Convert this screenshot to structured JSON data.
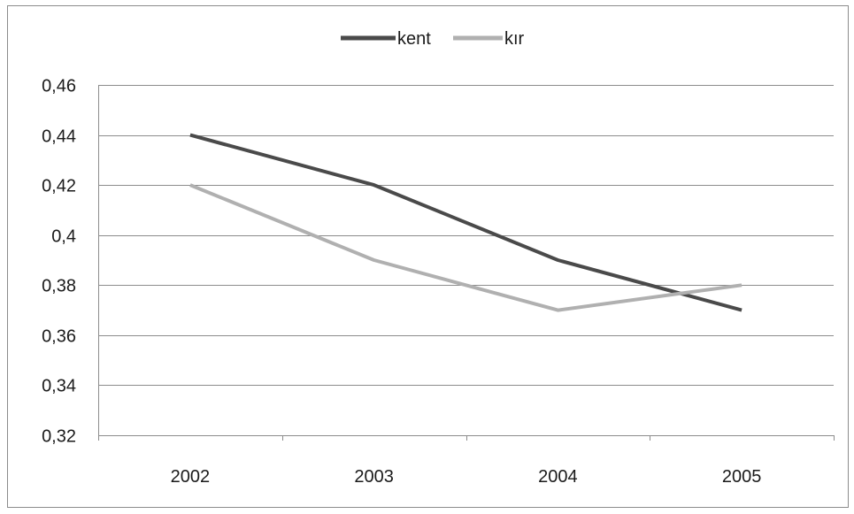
{
  "chart_data": {
    "type": "line",
    "categories": [
      "2002",
      "2003",
      "2004",
      "2005"
    ],
    "series": [
      {
        "name": "kent",
        "values": [
          0.44,
          0.42,
          0.39,
          0.37
        ],
        "color": "#4a4a4a"
      },
      {
        "name": "kır",
        "values": [
          0.42,
          0.39,
          0.37,
          0.38
        ],
        "color": "#b0b0b0"
      }
    ],
    "ylim": [
      0.32,
      0.46
    ],
    "yticks": [
      0.32,
      0.34,
      0.36,
      0.38,
      0.4,
      0.42,
      0.44,
      0.46
    ],
    "ytick_labels": [
      "0,32",
      "0,34",
      "0,36",
      "0,38",
      "0,4",
      "0,42",
      "0,44",
      "0,46"
    ],
    "legend_position": "top-center",
    "grid": true
  }
}
